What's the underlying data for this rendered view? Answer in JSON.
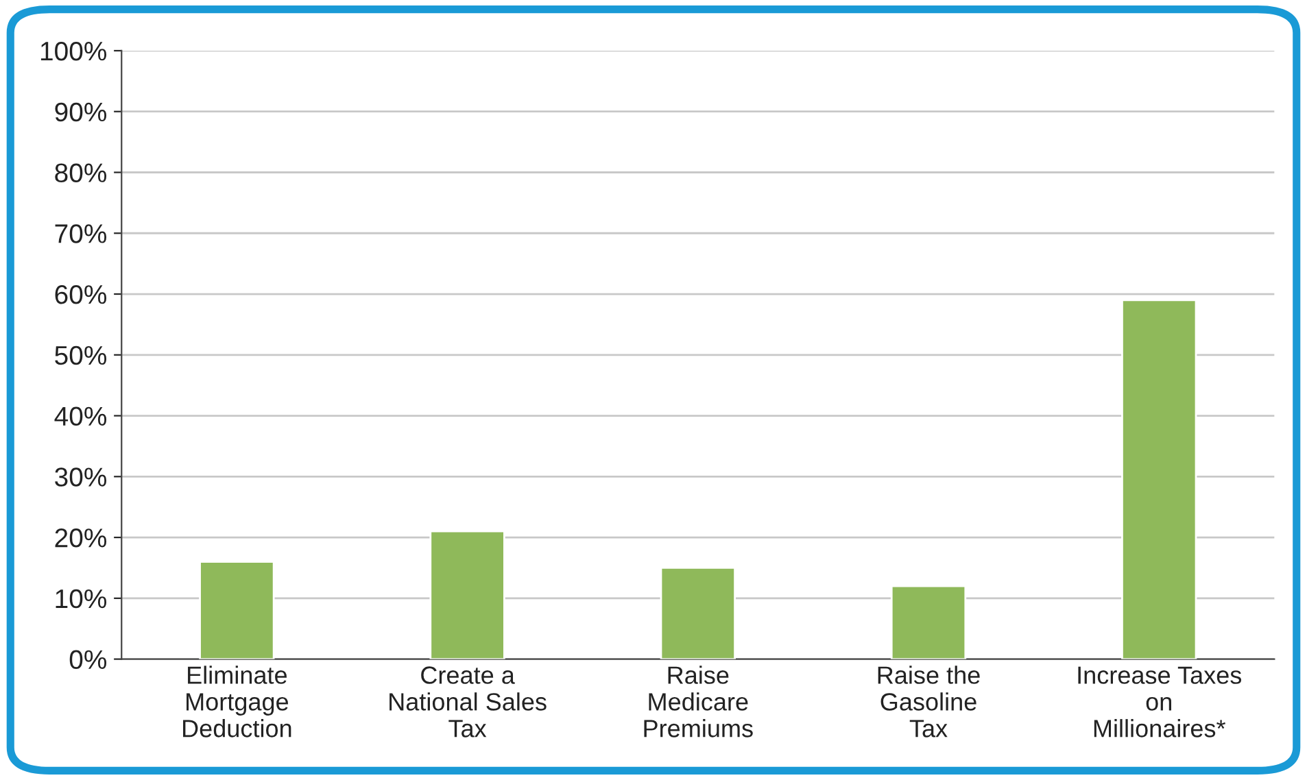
{
  "chart_data": {
    "type": "bar",
    "categories": [
      "Eliminate\nMortgage\nDeduction",
      "Create a\nNational Sales\nTax",
      "Raise\nMedicare\nPremiums",
      "Raise the\nGasoline\nTax",
      "Increase Taxes\non\nMillionaires*"
    ],
    "values": [
      16,
      21,
      15,
      12,
      59
    ],
    "color": "#8fb95a",
    "ylim": [
      0,
      100
    ],
    "yticks": [
      {
        "value": 0,
        "label": "0%"
      },
      {
        "value": 10,
        "label": "10%"
      },
      {
        "value": 20,
        "label": "20%"
      },
      {
        "value": 30,
        "label": "30%"
      },
      {
        "value": 40,
        "label": "40%"
      },
      {
        "value": 50,
        "label": "50%"
      },
      {
        "value": 60,
        "label": "60%"
      },
      {
        "value": 70,
        "label": "70%"
      },
      {
        "value": 80,
        "label": "80%"
      },
      {
        "value": 90,
        "label": "90%"
      },
      {
        "value": 100,
        "label": "100%"
      }
    ],
    "grid": "y"
  }
}
